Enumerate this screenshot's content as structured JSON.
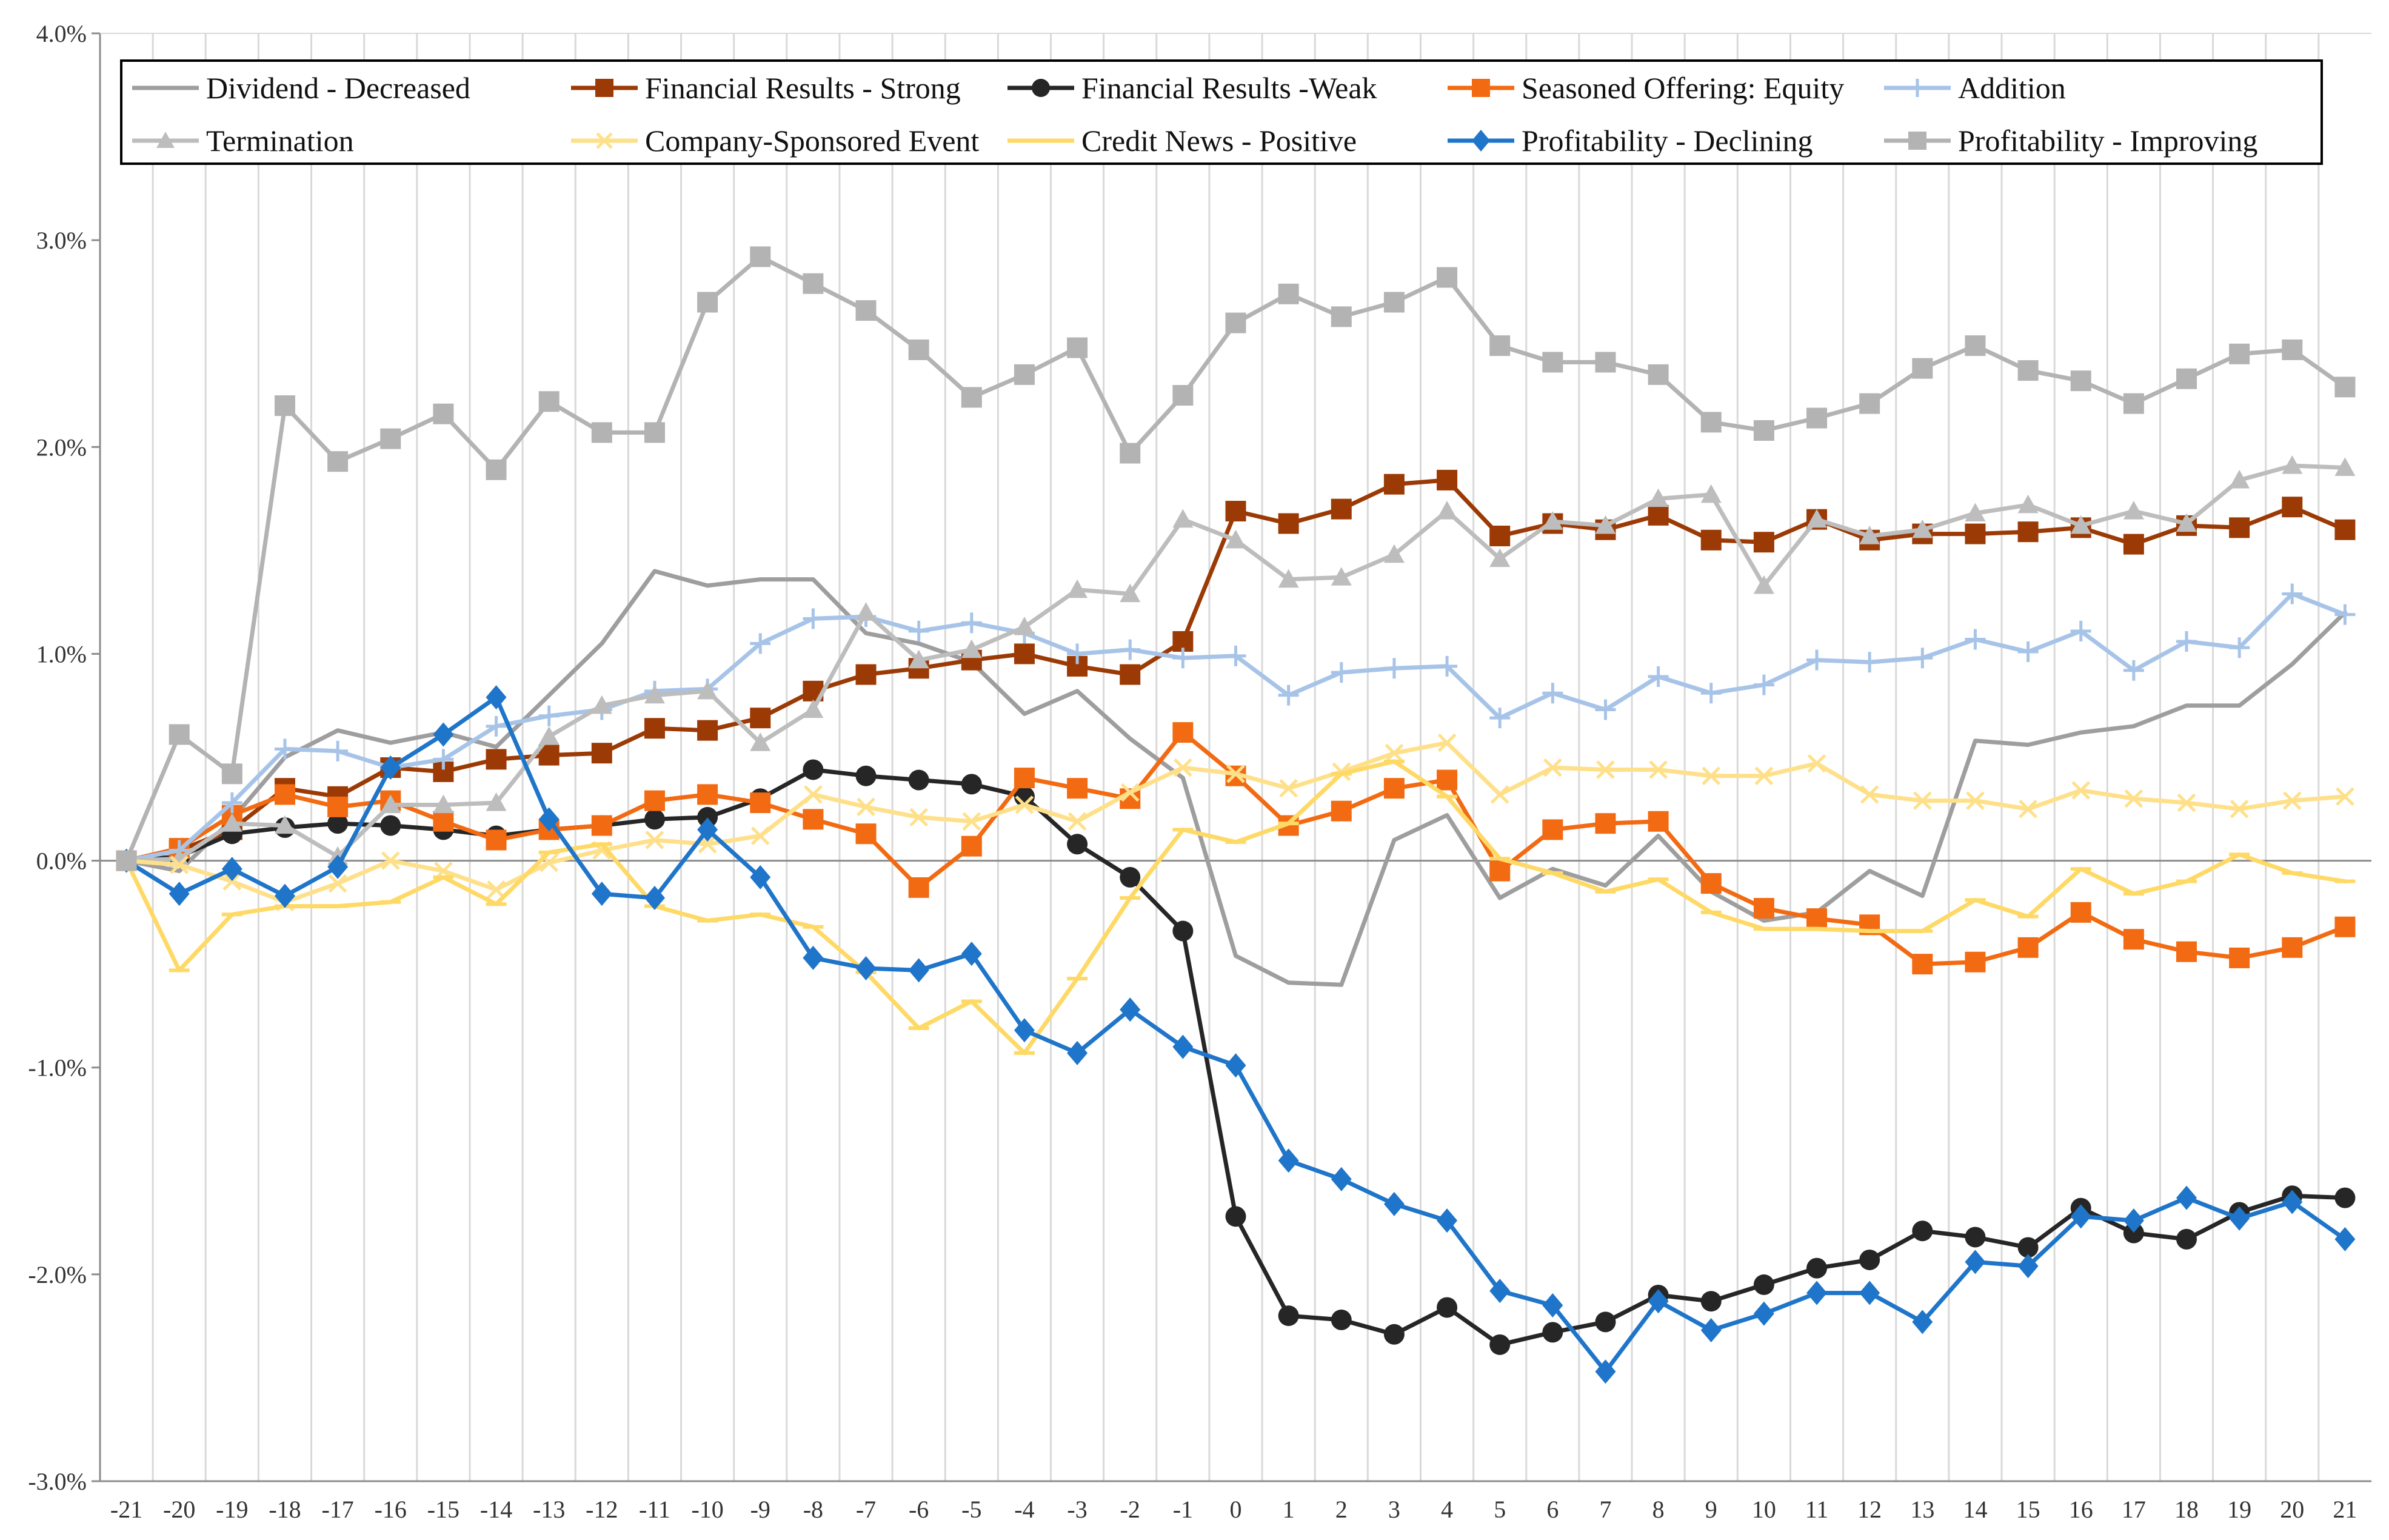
{
  "chart_data": {
    "type": "line",
    "title": "",
    "xlabel": "",
    "ylabel": "",
    "x": [
      -21,
      -20,
      -19,
      -18,
      -17,
      -16,
      -15,
      -14,
      -13,
      -12,
      -11,
      -10,
      -9,
      -8,
      -7,
      -6,
      -5,
      -4,
      -3,
      -2,
      -1,
      0,
      1,
      2,
      3,
      4,
      5,
      6,
      7,
      8,
      9,
      10,
      11,
      12,
      13,
      14,
      15,
      16,
      17,
      18,
      19,
      20,
      21
    ],
    "x_tick_labels": [
      "-21",
      "-20",
      "-19",
      "-18",
      "-17",
      "-16",
      "-15",
      "-14",
      "-13",
      "-12",
      "-11",
      "-10",
      "-9",
      "-8",
      "-7",
      "-6",
      "-5",
      "-4",
      "-3",
      "-2",
      "-1",
      "0",
      "1",
      "2",
      "3",
      "4",
      "5",
      "6",
      "7",
      "8",
      "9",
      "10",
      "11",
      "12",
      "13",
      "14",
      "15",
      "16",
      "17",
      "18",
      "19",
      "20",
      "21"
    ],
    "ylim": [
      -3.0,
      4.0
    ],
    "y_tick_labels": [
      "-3.0%",
      "-2.0%",
      "-1.0%",
      "0.0%",
      "1.0%",
      "2.0%",
      "3.0%",
      "4.0%"
    ],
    "y_unit": "%",
    "grid": "vertical",
    "legend_position": "top",
    "series": [
      {
        "name": "Dividend - Decreased",
        "color": "#9e9e9e",
        "marker": "none",
        "values": [
          0.0,
          -0.05,
          0.2,
          0.5,
          0.63,
          0.57,
          0.62,
          0.55,
          0.8,
          1.05,
          1.4,
          1.33,
          1.36,
          1.36,
          1.1,
          1.05,
          0.96,
          0.71,
          0.82,
          0.59,
          0.4,
          -0.46,
          -0.59,
          -0.6,
          0.1,
          0.22,
          -0.18,
          -0.04,
          -0.12,
          0.12,
          -0.15,
          -0.29,
          -0.25,
          -0.05,
          -0.17,
          0.58,
          0.56,
          0.62,
          0.65,
          0.75,
          0.75,
          0.95,
          1.2
        ]
      },
      {
        "name": "Financial Results - Strong",
        "color": "#9c3a05",
        "marker": "square",
        "values": [
          0.0,
          0.05,
          0.15,
          0.35,
          0.31,
          0.45,
          0.43,
          0.49,
          0.51,
          0.52,
          0.64,
          0.63,
          0.69,
          0.82,
          0.9,
          0.93,
          0.97,
          1.0,
          0.94,
          0.9,
          1.06,
          1.69,
          1.63,
          1.7,
          1.82,
          1.84,
          1.57,
          1.63,
          1.6,
          1.67,
          1.55,
          1.54,
          1.65,
          1.55,
          1.58,
          1.58,
          1.59,
          1.61,
          1.53,
          1.62,
          1.61,
          1.71,
          1.6
        ]
      },
      {
        "name": "Financial Results -Weak",
        "color": "#262626",
        "marker": "circle",
        "values": [
          0.0,
          0.02,
          0.13,
          0.16,
          0.18,
          0.17,
          0.15,
          0.12,
          0.15,
          0.17,
          0.2,
          0.21,
          0.3,
          0.44,
          0.41,
          0.39,
          0.37,
          0.31,
          0.08,
          -0.08,
          -0.34,
          -1.72,
          -2.2,
          -2.22,
          -2.29,
          -2.16,
          -2.34,
          -2.28,
          -2.23,
          -2.1,
          -2.13,
          -2.05,
          -1.97,
          -1.93,
          -1.79,
          -1.82,
          -1.87,
          -1.68,
          -1.8,
          -1.83,
          -1.7,
          -1.62,
          -1.63
        ]
      },
      {
        "name": "Seasoned Offering: Equity",
        "color": "#f26a12",
        "marker": "square",
        "values": [
          0.0,
          0.06,
          0.22,
          0.32,
          0.26,
          0.29,
          0.19,
          0.1,
          0.15,
          0.17,
          0.29,
          0.32,
          0.28,
          0.2,
          0.13,
          -0.13,
          0.07,
          0.4,
          0.35,
          0.3,
          0.62,
          0.41,
          0.17,
          0.24,
          0.35,
          0.39,
          -0.05,
          0.15,
          0.18,
          0.19,
          -0.11,
          -0.23,
          -0.28,
          -0.31,
          -0.5,
          -0.49,
          -0.42,
          -0.25,
          -0.38,
          -0.44,
          -0.47,
          -0.42,
          -0.32
        ]
      },
      {
        "name": "Addition",
        "color": "#a7c4e8",
        "marker": "plus",
        "values": [
          0.0,
          0.05,
          0.28,
          0.54,
          0.53,
          0.45,
          0.49,
          0.65,
          0.7,
          0.73,
          0.82,
          0.83,
          1.05,
          1.17,
          1.18,
          1.11,
          1.15,
          1.1,
          1.0,
          1.02,
          0.98,
          0.99,
          0.8,
          0.91,
          0.93,
          0.94,
          0.69,
          0.81,
          0.73,
          0.89,
          0.81,
          0.85,
          0.97,
          0.96,
          0.98,
          1.07,
          1.01,
          1.11,
          0.92,
          1.06,
          1.03,
          1.29,
          1.19
        ]
      },
      {
        "name": "Termination",
        "color": "#bdbdbd",
        "marker": "triangle",
        "values": [
          0.0,
          0.01,
          0.18,
          0.17,
          0.02,
          0.27,
          0.27,
          0.28,
          0.6,
          0.75,
          0.8,
          0.82,
          0.57,
          0.73,
          1.2,
          0.97,
          1.02,
          1.13,
          1.31,
          1.29,
          1.65,
          1.55,
          1.36,
          1.37,
          1.48,
          1.69,
          1.46,
          1.64,
          1.62,
          1.75,
          1.77,
          1.33,
          1.65,
          1.57,
          1.6,
          1.68,
          1.72,
          1.62,
          1.69,
          1.63,
          1.84,
          1.91,
          1.9
        ]
      },
      {
        "name": "Company-Sponsored Event",
        "color": "#ffe08a",
        "marker": "cross",
        "values": [
          0.0,
          -0.02,
          -0.1,
          -0.2,
          -0.11,
          0.0,
          -0.05,
          -0.14,
          -0.01,
          0.05,
          0.1,
          0.08,
          0.12,
          0.32,
          0.26,
          0.21,
          0.19,
          0.27,
          0.19,
          0.33,
          0.45,
          0.42,
          0.35,
          0.43,
          0.52,
          0.57,
          0.32,
          0.45,
          0.44,
          0.44,
          0.41,
          0.41,
          0.47,
          0.32,
          0.29,
          0.29,
          0.25,
          0.34,
          0.3,
          0.28,
          0.25,
          0.29,
          0.31
        ]
      },
      {
        "name": "Credit News - Positive",
        "color": "#ffd966",
        "marker": "dash",
        "values": [
          0.0,
          -0.53,
          -0.26,
          -0.22,
          -0.22,
          -0.2,
          -0.08,
          -0.21,
          0.04,
          0.08,
          -0.22,
          -0.29,
          -0.26,
          -0.32,
          -0.54,
          -0.81,
          -0.68,
          -0.93,
          -0.57,
          -0.18,
          0.15,
          0.09,
          0.18,
          0.42,
          0.48,
          0.31,
          0.01,
          -0.06,
          -0.15,
          -0.09,
          -0.25,
          -0.33,
          -0.33,
          -0.34,
          -0.34,
          -0.19,
          -0.27,
          -0.04,
          -0.16,
          -0.1,
          0.03,
          -0.06,
          -0.1
        ]
      },
      {
        "name": "Profitability - Declining",
        "color": "#1f75c9",
        "marker": "diamond",
        "values": [
          0.0,
          -0.16,
          -0.04,
          -0.17,
          -0.03,
          0.45,
          0.61,
          0.79,
          0.2,
          -0.16,
          -0.18,
          0.15,
          -0.08,
          -0.47,
          -0.52,
          -0.53,
          -0.45,
          -0.82,
          -0.93,
          -0.72,
          -0.9,
          -0.99,
          -1.45,
          -1.54,
          -1.66,
          -1.74,
          -2.08,
          -2.15,
          -2.47,
          -2.13,
          -2.27,
          -2.19,
          -2.09,
          -2.09,
          -2.23,
          -1.94,
          -1.96,
          -1.72,
          -1.74,
          -1.63,
          -1.73,
          -1.65,
          -1.83
        ]
      },
      {
        "name": "Profitability - Improving",
        "color": "#b3b3b3",
        "marker": "square",
        "values": [
          0.0,
          0.61,
          0.42,
          2.2,
          1.93,
          2.04,
          2.16,
          1.89,
          2.22,
          2.07,
          2.07,
          2.7,
          2.92,
          2.79,
          2.66,
          2.47,
          2.24,
          2.35,
          2.48,
          1.97,
          2.25,
          2.6,
          2.74,
          2.63,
          2.7,
          2.82,
          2.49,
          2.41,
          2.41,
          2.35,
          2.12,
          2.08,
          2.14,
          2.21,
          2.38,
          2.49,
          2.37,
          2.32,
          2.21,
          2.33,
          2.45,
          2.47,
          2.29
        ]
      }
    ]
  }
}
